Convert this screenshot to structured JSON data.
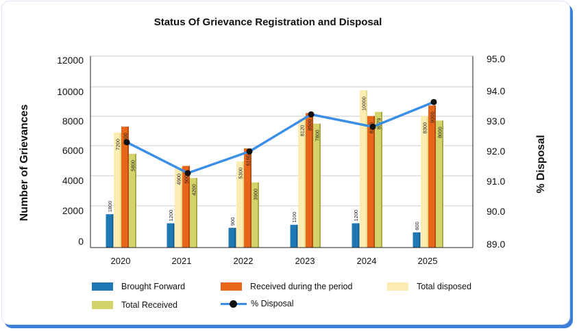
{
  "chart_data": {
    "type": "bar",
    "title": "Status Of Grievance Registration and Disposal",
    "ylabel": "Number of Grievances",
    "y2label": "% Disposal",
    "categories": [
      "2020",
      "2021",
      "2022",
      "2023",
      "2024",
      "2025"
    ],
    "ylim": [
      0,
      12000
    ],
    "y_ticks": [
      "12000",
      "10000",
      "8000",
      "6000",
      "4000",
      "2000",
      "0"
    ],
    "y2lim": [
      89.0,
      95.0
    ],
    "y2_ticks": [
      "95.0",
      "94.0",
      "93.0",
      "92.0",
      "91.0",
      "90.0",
      "89.0"
    ],
    "grid": true,
    "series": [
      {
        "name": "Brought Forward",
        "values": [
          1800,
          1200,
          900,
          1100,
          1200,
          600
        ],
        "color": "#1f78b4"
      },
      {
        "name": "Total disposed",
        "values": [
          7200,
          4900,
          5300,
          8120,
          10000,
          8300
        ],
        "color": "#fbedb2"
      },
      {
        "name": "Received during the period",
        "values": [
          7600,
          5000,
          6160,
          8500,
          8300,
          9000
        ],
        "color": "#e8661a"
      },
      {
        "name": "Total Received",
        "values": [
          5800,
          4200,
          3900,
          7800,
          8579,
          8000
        ],
        "color": "#d3d36a"
      }
    ],
    "line_series": {
      "name": "% Disposal",
      "values": [
        92.3,
        91.3,
        92.0,
        93.2,
        92.8,
        93.6
      ],
      "color": "#3a8ee6",
      "axis": "right"
    },
    "legend_position": "bottom"
  },
  "legend": {
    "brought_forward": "Brought Forward",
    "received": "Received during the period",
    "disposed": "Total disposed",
    "total_received": "Total Received",
    "pct": "% Disposal"
  }
}
